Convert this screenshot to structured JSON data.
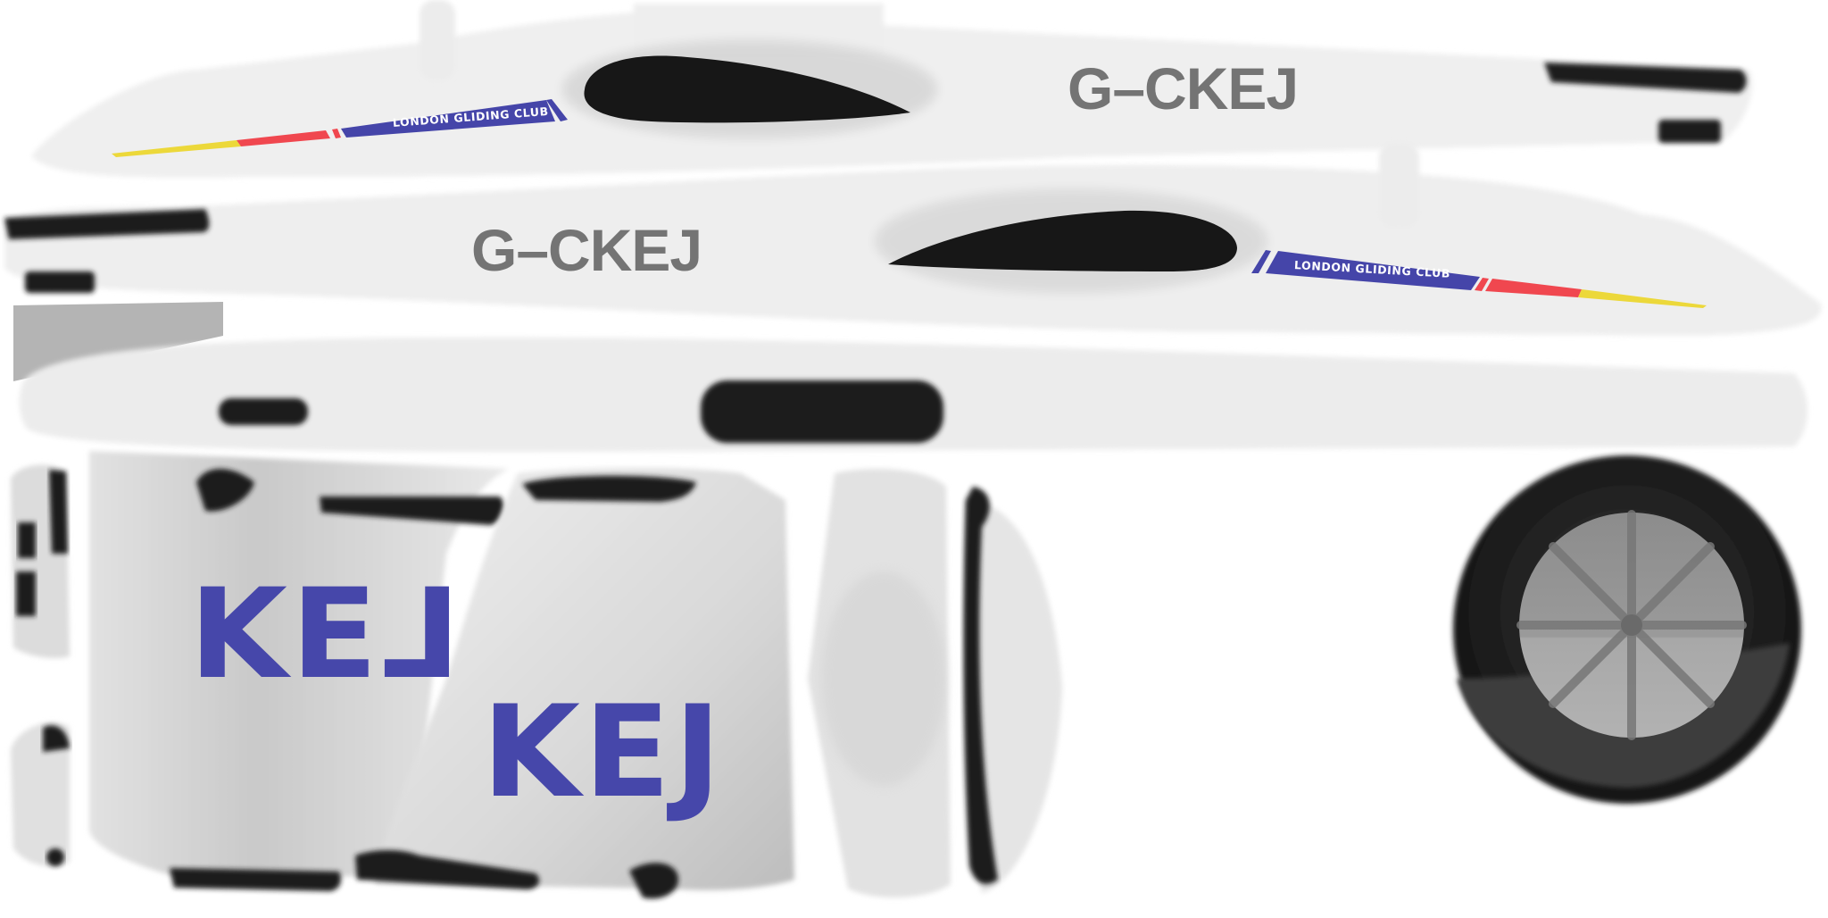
{
  "texture": {
    "registration_top": "G–CKEJ",
    "registration_mid": "G–CKEJ",
    "club_stripe_top": "LONDON GLIDING CLUB",
    "club_stripe_mid": "LONDON GLIDING CLUB",
    "tail_code_a": "KEᒧ",
    "tail_code_b": "KEJ"
  },
  "colors": {
    "background": "#ffffff",
    "body_gray": "#ececec",
    "black_panel": "#1b1b1b",
    "registration_gray": "#747474",
    "stripe_blue": "#4545a9",
    "stripe_red": "#f0474f",
    "stripe_yellow": "#ecd83a",
    "wheel_gray": "#9a9a9a"
  }
}
